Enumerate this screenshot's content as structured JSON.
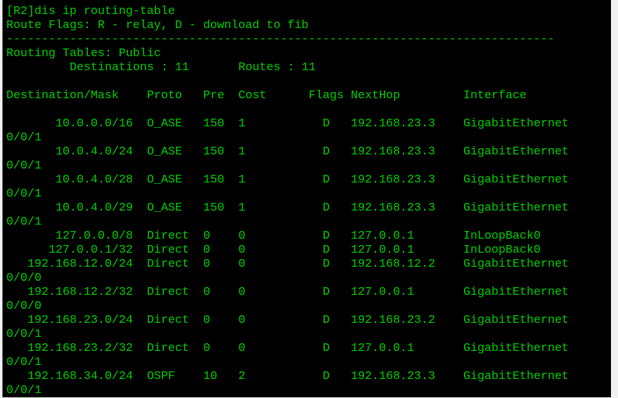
{
  "terminal": {
    "command_line": "[R2]dis ip routing-table",
    "route_flags": "Route Flags: R - relay, D - download to fib",
    "separator": "------------------------------------------------------------------------------",
    "tables_line": "Routing Tables: Public",
    "destinations_label": "Destinations : 11",
    "routes_label": "Routes : 11",
    "headers": {
      "destination": "Destination/Mask",
      "proto": "Proto",
      "pre": "Pre",
      "cost": "Cost",
      "flags": "Flags",
      "nexthop": "NextHop",
      "interface": "Interface"
    },
    "rows": [
      {
        "dest": "10.0.0.0/16",
        "proto": "O_ASE",
        "pre": "150",
        "cost": "1",
        "flags": "D",
        "nexthop": "192.168.23.3",
        "iface": "GigabitEthernet",
        "iface_cont": "0/0/1"
      },
      {
        "dest": "10.0.4.0/24",
        "proto": "O_ASE",
        "pre": "150",
        "cost": "1",
        "flags": "D",
        "nexthop": "192.168.23.3",
        "iface": "GigabitEthernet",
        "iface_cont": "0/0/1"
      },
      {
        "dest": "10.0.4.0/28",
        "proto": "O_ASE",
        "pre": "150",
        "cost": "1",
        "flags": "D",
        "nexthop": "192.168.23.3",
        "iface": "GigabitEthernet",
        "iface_cont": "0/0/1"
      },
      {
        "dest": "10.0.4.0/29",
        "proto": "O_ASE",
        "pre": "150",
        "cost": "1",
        "flags": "D",
        "nexthop": "192.168.23.3",
        "iface": "GigabitEthernet",
        "iface_cont": "0/0/1"
      },
      {
        "dest": "127.0.0.0/8",
        "proto": "Direct",
        "pre": "0",
        "cost": "0",
        "flags": "D",
        "nexthop": "127.0.0.1",
        "iface": "InLoopBack0"
      },
      {
        "dest": "127.0.0.1/32",
        "proto": "Direct",
        "pre": "0",
        "cost": "0",
        "flags": "D",
        "nexthop": "127.0.0.1",
        "iface": "InLoopBack0"
      },
      {
        "dest": "192.168.12.0/24",
        "proto": "Direct",
        "pre": "0",
        "cost": "0",
        "flags": "D",
        "nexthop": "192.168.12.2",
        "iface": "GigabitEthernet",
        "iface_cont": "0/0/0"
      },
      {
        "dest": "192.168.12.2/32",
        "proto": "Direct",
        "pre": "0",
        "cost": "0",
        "flags": "D",
        "nexthop": "127.0.0.1",
        "iface": "GigabitEthernet",
        "iface_cont": "0/0/0"
      },
      {
        "dest": "192.168.23.0/24",
        "proto": "Direct",
        "pre": "0",
        "cost": "0",
        "flags": "D",
        "nexthop": "192.168.23.2",
        "iface": "GigabitEthernet",
        "iface_cont": "0/0/1"
      },
      {
        "dest": "192.168.23.2/32",
        "proto": "Direct",
        "pre": "0",
        "cost": "0",
        "flags": "D",
        "nexthop": "127.0.0.1",
        "iface": "GigabitEthernet",
        "iface_cont": "0/0/1"
      },
      {
        "dest": "192.168.34.0/24",
        "proto": "OSPF",
        "pre": "10",
        "cost": "2",
        "flags": "D",
        "nexthop": "192.168.23.3",
        "iface": "GigabitEthernet",
        "iface_cont": "0/0/1"
      }
    ],
    "colors": {
      "background": "#000000",
      "text": "#00d000"
    }
  }
}
